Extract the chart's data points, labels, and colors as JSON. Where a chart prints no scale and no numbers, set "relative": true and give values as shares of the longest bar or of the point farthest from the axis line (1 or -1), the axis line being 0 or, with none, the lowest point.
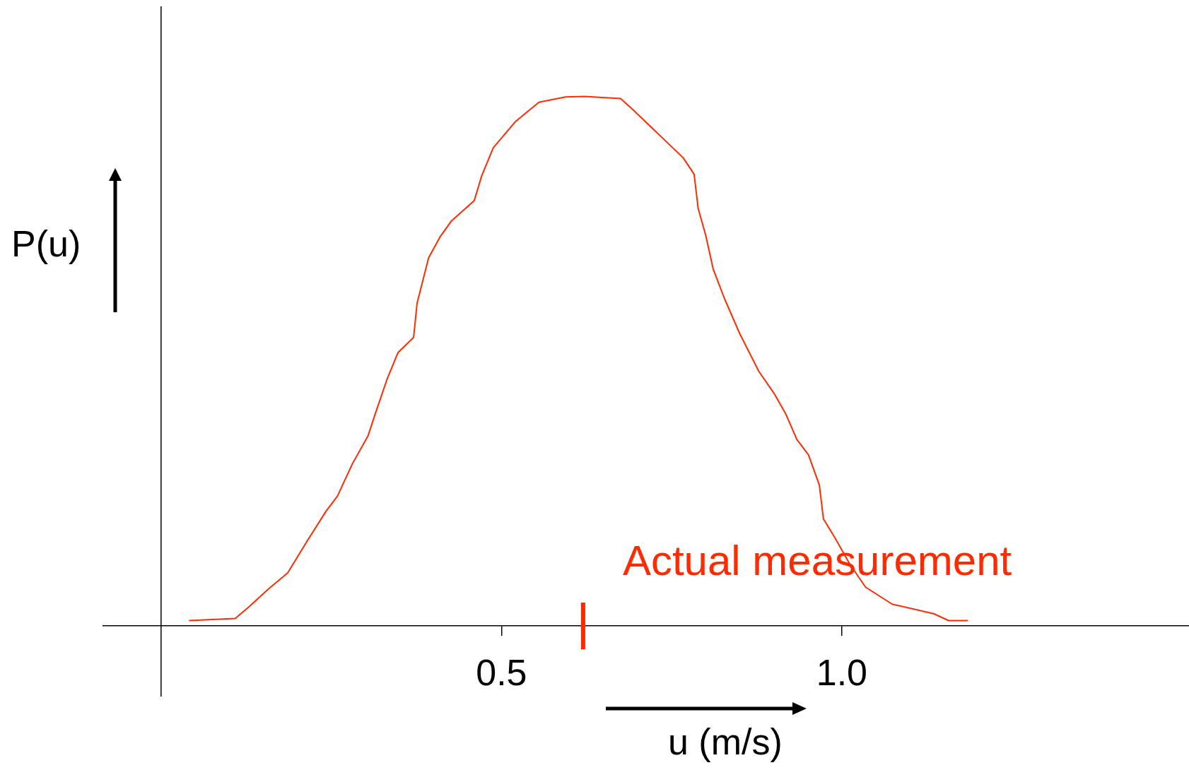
{
  "chart_data": {
    "type": "line",
    "relative": true,
    "xlabel": "u (m/s)",
    "ylabel": "P(u)",
    "xlim": [
      -0.085,
      1.51
    ],
    "xticks": [
      0.5,
      {
        "value": 1,
        "label": "1.0"
      }
    ],
    "grid": false,
    "legend": false,
    "marker": "none",
    "line_style": "solid",
    "tick_labels": "x",
    "ref_lines": [
      {
        "axis": "x",
        "value": 0.62,
        "label": "Actual measurement",
        "color": "#ff2a00"
      }
    ],
    "series": [
      {
        "color": "#ff2a00",
        "x": [
          0.041,
          0.109,
          0.13,
          0.158,
          0.186,
          0.214,
          0.242,
          0.259,
          0.281,
          0.304,
          0.315,
          0.332,
          0.348,
          0.371,
          0.376,
          0.393,
          0.41,
          0.426,
          0.46,
          0.471,
          0.488,
          0.521,
          0.555,
          0.594,
          0.622,
          0.675,
          0.694,
          0.711,
          0.767,
          0.783,
          0.789,
          0.8,
          0.811,
          0.828,
          0.85,
          0.878,
          0.901,
          0.917,
          0.934,
          0.951,
          0.967,
          0.973,
          0.99,
          1.012,
          1.035,
          1.074,
          1.135,
          1.157,
          1.185
        ],
        "values": [
          0.01,
          0.014,
          0.037,
          0.07,
          0.1,
          0.159,
          0.216,
          0.245,
          0.306,
          0.359,
          0.402,
          0.466,
          0.516,
          0.545,
          0.609,
          0.695,
          0.735,
          0.764,
          0.803,
          0.85,
          0.903,
          0.953,
          0.989,
          0.999,
          1.0,
          0.996,
          0.974,
          0.953,
          0.884,
          0.853,
          0.788,
          0.738,
          0.674,
          0.617,
          0.552,
          0.481,
          0.438,
          0.402,
          0.352,
          0.323,
          0.266,
          0.202,
          0.166,
          0.116,
          0.073,
          0.041,
          0.023,
          0.01,
          0.01
        ]
      }
    ]
  }
}
